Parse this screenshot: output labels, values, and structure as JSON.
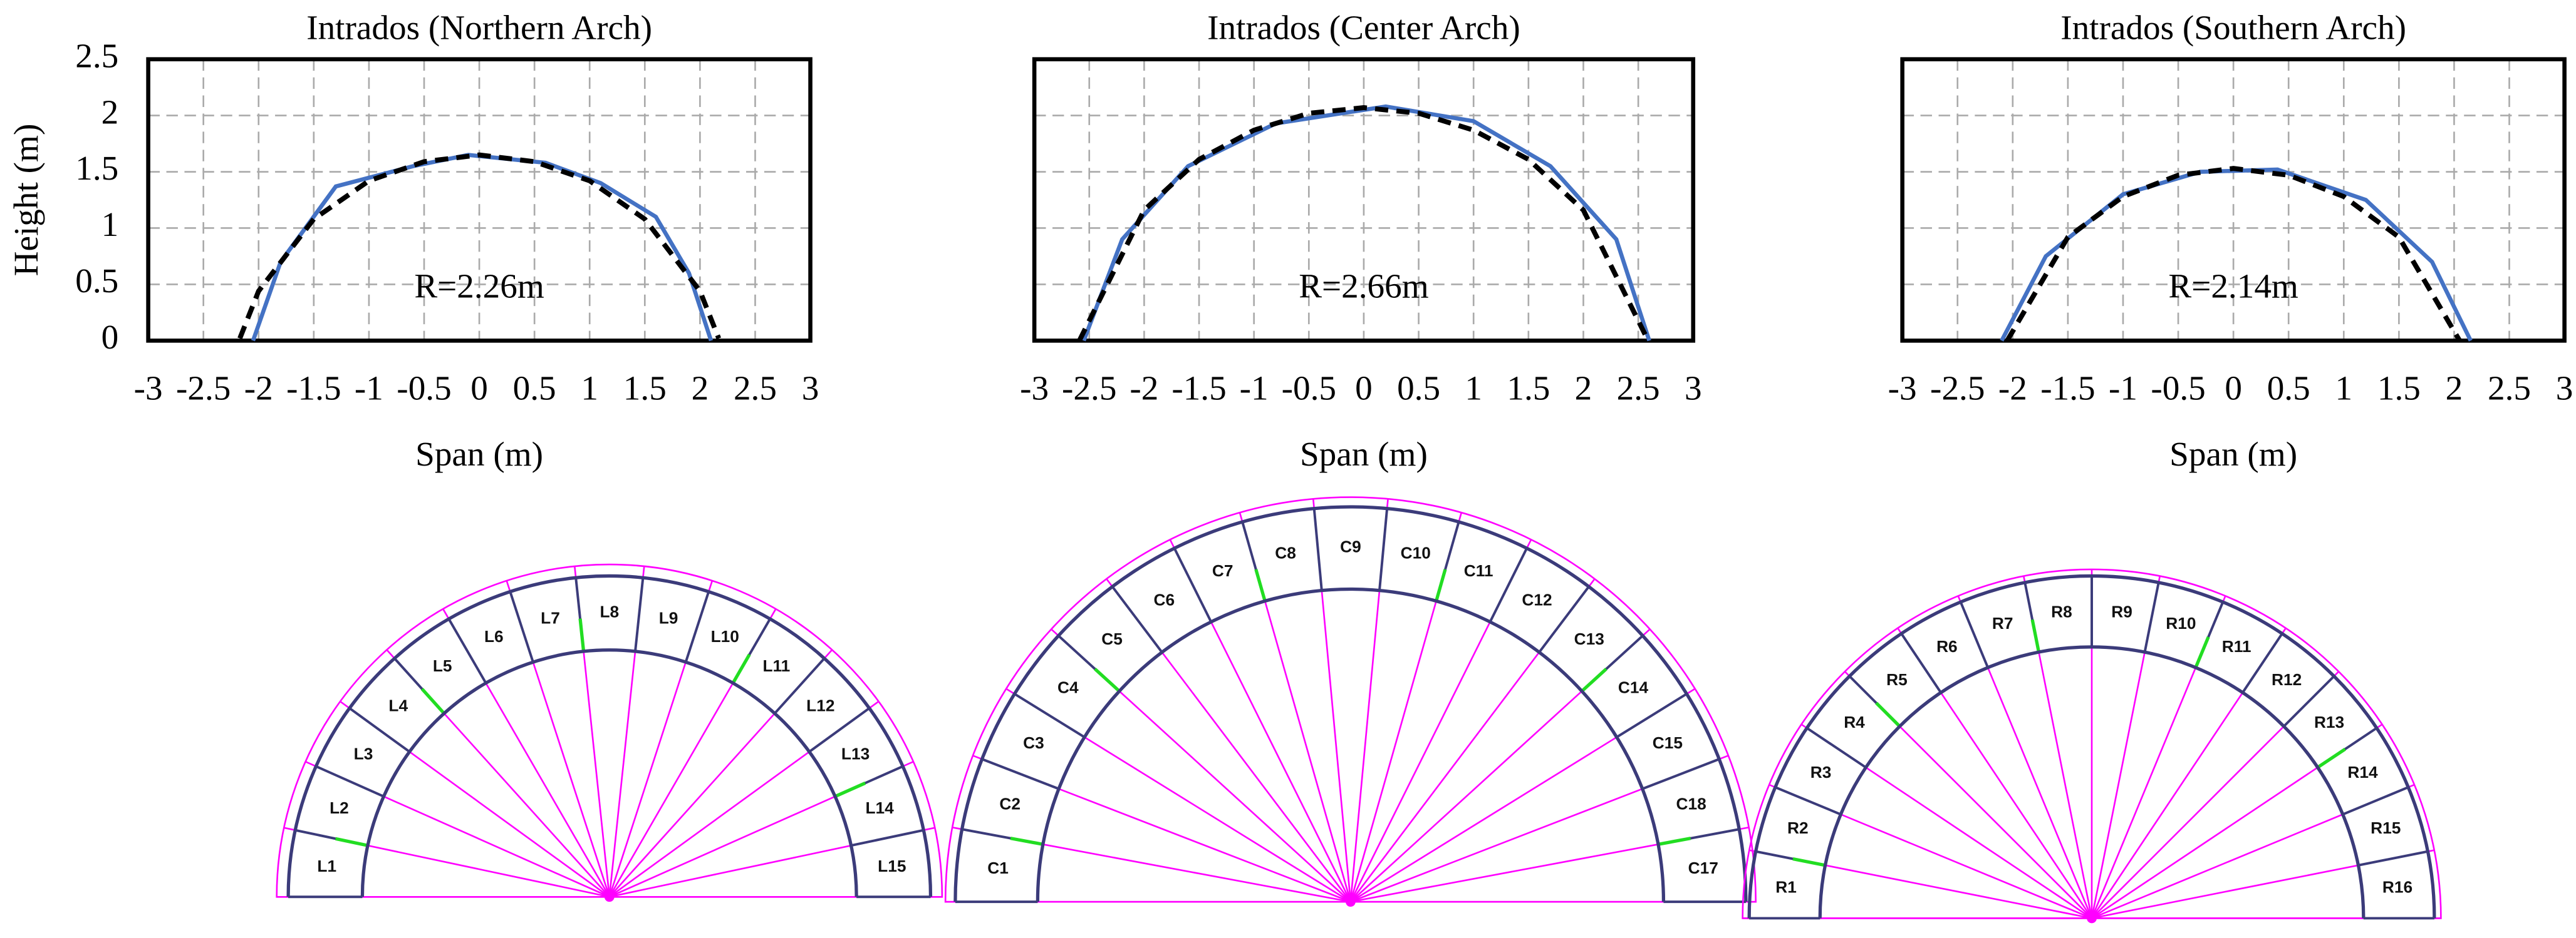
{
  "chart_data": [
    {
      "type": "line",
      "title": "Intrados  (Northern Arch)",
      "xlabel": "Span (m)",
      "ylabel": "Height (m)",
      "annotation": "R=2.26m",
      "show_ytick_labels": true,
      "grid": true,
      "xlim": [
        -3,
        3
      ],
      "xticks": [
        -3,
        -2.5,
        -2,
        -1.5,
        -1,
        -0.5,
        0,
        0.5,
        1,
        1.5,
        2,
        2.5,
        3
      ],
      "ylim": [
        0,
        2.5
      ],
      "yticks": [
        0,
        0.5,
        1,
        1.5,
        2,
        2.5
      ],
      "series": [
        {
          "color": "#4472c4",
          "dash": false,
          "x": [
            -2.05,
            -1.8,
            -1.3,
            -0.6,
            -0.1,
            0.6,
            1.1,
            1.6,
            1.9,
            2.1
          ],
          "values": [
            0,
            0.7,
            1.37,
            1.55,
            1.65,
            1.58,
            1.4,
            1.1,
            0.6,
            0
          ]
        },
        {
          "color": "#000000",
          "dash": true,
          "x": [
            -2.17,
            -2,
            -1.5,
            -1,
            -0.5,
            0,
            0.5,
            1,
            1.5,
            2,
            2.17
          ],
          "values": [
            0.02,
            0.44,
            1.08,
            1.42,
            1.59,
            1.65,
            1.59,
            1.42,
            1.08,
            0.44,
            0.02
          ]
        }
      ]
    },
    {
      "type": "line",
      "title": "Intrados (Center Arch)",
      "xlabel": "Span (m)",
      "annotation": "R=2.66m",
      "show_ytick_labels": false,
      "grid": true,
      "xlim": [
        -3,
        3
      ],
      "xticks": [
        -3,
        -2.5,
        -2,
        -1.5,
        -1,
        -0.5,
        0,
        0.5,
        1,
        1.5,
        2,
        2.5,
        3
      ],
      "ylim": [
        0,
        2.5
      ],
      "yticks": [
        0,
        0.5,
        1,
        1.5,
        2,
        2.5
      ],
      "series": [
        {
          "color": "#4472c4",
          "dash": false,
          "x": [
            -2.55,
            -2.2,
            -1.6,
            -0.8,
            0.2,
            1,
            1.7,
            2.3,
            2.6
          ],
          "values": [
            0,
            0.9,
            1.55,
            1.93,
            2.08,
            1.95,
            1.55,
            0.9,
            0
          ]
        },
        {
          "color": "#000000",
          "dash": true,
          "x": [
            -2.59,
            -2,
            -1.5,
            -1,
            -0.5,
            0,
            0.5,
            1,
            1.5,
            2,
            2.59
          ],
          "values": [
            0,
            1.16,
            1.61,
            1.87,
            2.02,
            2.07,
            2.02,
            1.87,
            1.61,
            1.16,
            0
          ]
        }
      ]
    },
    {
      "type": "line",
      "title": "Intrados (Southern Arch)",
      "xlabel": "Span (m)",
      "annotation": "R=2.14m",
      "show_ytick_labels": false,
      "grid": true,
      "xlim": [
        -3,
        3
      ],
      "xticks": [
        -3,
        -2.5,
        -2,
        -1.5,
        -1,
        -0.5,
        0,
        0.5,
        1,
        1.5,
        2,
        2.5,
        3
      ],
      "ylim": [
        0,
        2.5
      ],
      "yticks": [
        0,
        0.5,
        1,
        1.5,
        2,
        2.5
      ],
      "series": [
        {
          "color": "#4472c4",
          "dash": false,
          "x": [
            -2.1,
            -1.7,
            -1,
            -0.3,
            0.4,
            1.2,
            1.8,
            2.15
          ],
          "values": [
            0,
            0.75,
            1.3,
            1.5,
            1.52,
            1.25,
            0.7,
            0
          ]
        },
        {
          "color": "#000000",
          "dash": true,
          "x": [
            -2.05,
            -1.5,
            -1,
            -0.5,
            0,
            0.5,
            1,
            1.5,
            2.05
          ],
          "values": [
            0,
            0.92,
            1.28,
            1.47,
            1.53,
            1.47,
            1.28,
            0.92,
            0
          ]
        }
      ]
    }
  ],
  "diagram": {
    "arches": [
      {
        "labels": [
          "L1",
          "L2",
          "L3",
          "L4",
          "L5",
          "L6",
          "L7",
          "L8",
          "L9",
          "L10",
          "L11",
          "L12",
          "L13",
          "L14",
          "L15"
        ]
      },
      {
        "labels": [
          "C1",
          "C2",
          "C3",
          "C4",
          "C5",
          "C6",
          "C7",
          "C8",
          "C9",
          "C10",
          "C11",
          "C12",
          "C13",
          "C14",
          "C15",
          "C18",
          "C17"
        ]
      },
      {
        "labels": [
          "R1",
          "R2",
          "R3",
          "R4",
          "R5",
          "R6",
          "R7",
          "R8",
          "R9",
          "R10",
          "R11",
          "R12",
          "R13",
          "R14",
          "R15",
          "R16"
        ]
      }
    ]
  }
}
